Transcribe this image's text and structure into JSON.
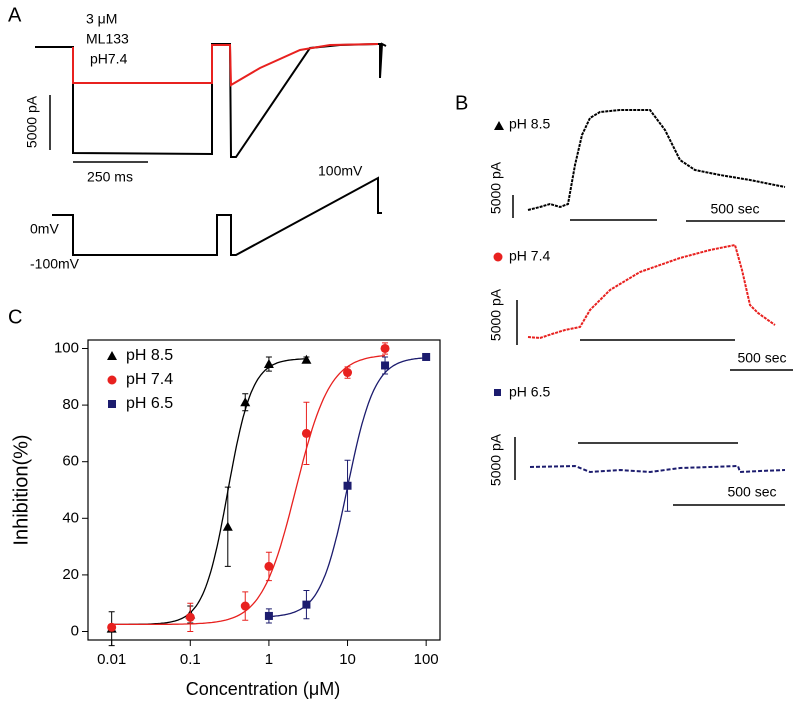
{
  "panel_a": {
    "label": "A",
    "condition": [
      "3 μM",
      "ML133",
      "pH7.4"
    ],
    "current_scale": "5000 pA",
    "time_scale": "250 ms",
    "voltages": [
      "0mV",
      "-100mV",
      "100mV"
    ]
  },
  "panel_b": {
    "label": "B",
    "traces": [
      {
        "name": "pH 8.5",
        "current_scale": "5000 pA",
        "time_scale": "500 sec"
      },
      {
        "name": "pH 7.4",
        "current_scale": "5000 pA",
        "time_scale": "500 sec"
      },
      {
        "name": "pH 6.5",
        "current_scale": "5000 pA",
        "time_scale": "500 sec"
      }
    ]
  },
  "chart_data": {
    "type": "scatter",
    "panel_label": "C",
    "x_label": "Concentration (μM)",
    "y_label": "Inhibition(%)",
    "xscale": "log",
    "xlim": [
      0.005,
      150
    ],
    "xticks": [
      0.01,
      0.1,
      1,
      10,
      100
    ],
    "ylim": [
      -3,
      103
    ],
    "yticks": [
      0,
      20,
      40,
      60,
      80,
      100
    ],
    "legend": "upper-left",
    "series": [
      {
        "name": "pH 8.5",
        "color": "#000000",
        "marker": "triangle",
        "x": [
          0.01,
          0.1,
          0.3,
          0.5,
          1,
          3
        ],
        "values": [
          1,
          6,
          37,
          81,
          94.5,
          96
        ],
        "errors": [
          6,
          3,
          14,
          3,
          2.5,
          1
        ],
        "fit": {
          "bottom": 2.5,
          "top": 96.5,
          "ec50": 0.3,
          "hill": 2.8
        }
      },
      {
        "name": "pH 7.4",
        "color": "#e8211f",
        "marker": "circle",
        "x": [
          0.01,
          0.1,
          0.5,
          1,
          3,
          10,
          30
        ],
        "values": [
          1.5,
          5,
          9,
          23,
          70,
          91.5,
          100
        ],
        "errors": [
          1,
          5,
          5,
          5,
          11,
          2,
          2
        ],
        "fit": {
          "bottom": 2.5,
          "top": 98,
          "ec50": 2.2,
          "hill": 2
        }
      },
      {
        "name": "pH 6.5",
        "color": "#1c1c6e",
        "marker": "square",
        "x": [
          1,
          3,
          10,
          30,
          100
        ],
        "values": [
          5.5,
          9.5,
          51.5,
          94,
          97
        ],
        "errors": [
          2.5,
          5,
          9,
          3,
          1
        ],
        "fit": {
          "bottom": 5,
          "top": 97,
          "ec50": 10,
          "hill": 2.5
        }
      }
    ]
  }
}
